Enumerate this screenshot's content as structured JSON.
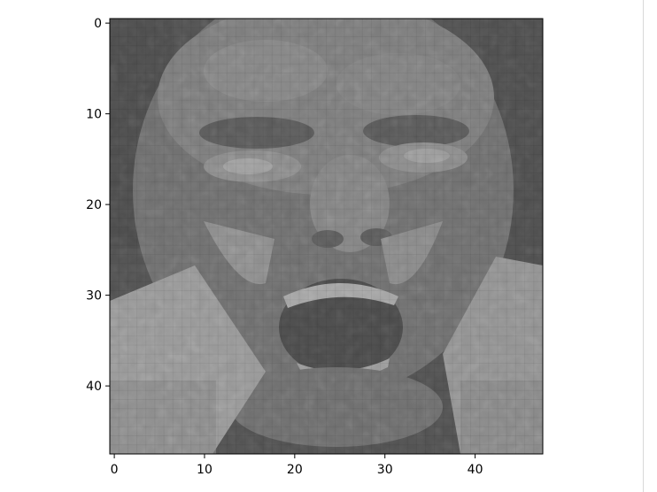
{
  "image": {
    "subject": "pixelated grayscale face",
    "pixel_grid": [
      48,
      48
    ],
    "colormap": "gray"
  },
  "axes": {
    "x_ticks": [
      "0",
      "10",
      "20",
      "30",
      "40"
    ],
    "y_ticks": [
      "0",
      "10",
      "20",
      "30",
      "40"
    ],
    "xlim": [
      -0.5,
      47.5
    ],
    "ylim": [
      47.5,
      -0.5
    ]
  }
}
